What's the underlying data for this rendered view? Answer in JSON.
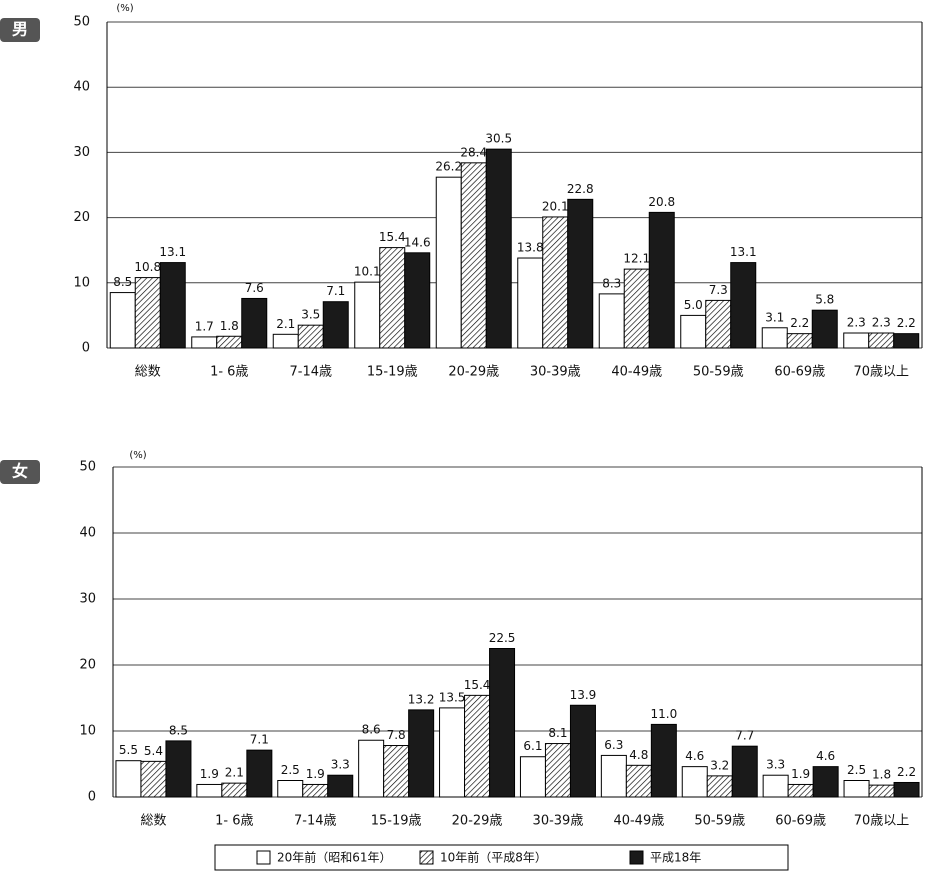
{
  "chart_data": [
    {
      "type": "bar",
      "label": "男",
      "unit": "(%)",
      "categories": [
        "総数",
        "1- 6歳",
        "7-14歳",
        "15-19歳",
        "20-29歳",
        "30-39歳",
        "40-49歳",
        "50-59歳",
        "60-69歳",
        "70歳以上"
      ],
      "series": [
        {
          "color": "#ffffff",
          "values": [
            8.5,
            1.7,
            2.1,
            10.1,
            26.2,
            13.8,
            8.3,
            5.0,
            3.1,
            2.3
          ],
          "value_labels": [
            "8.5",
            "1.7",
            "2.1",
            "10.1",
            "26.2",
            "13.8",
            "8.3",
            "5.0",
            "3.1",
            "2.3"
          ]
        },
        {
          "color": "#000000",
          "hatch": true,
          "values": [
            10.8,
            1.8,
            3.5,
            15.4,
            28.4,
            20.1,
            12.1,
            7.3,
            2.2,
            2.3
          ],
          "value_labels": [
            "10.8",
            "1.8",
            "3.5",
            "15.4",
            "28.4",
            "20.1",
            "12.1",
            "7.3",
            "2.2",
            "2.3"
          ]
        },
        {
          "color": "#1a1a1a",
          "values": [
            13.1,
            7.6,
            7.1,
            14.6,
            30.5,
            22.8,
            20.8,
            13.1,
            5.8,
            2.2
          ],
          "value_labels": [
            "13.1",
            "7.6",
            "7.1",
            "14.6",
            "30.5",
            "22.8",
            "20.8",
            "13.1",
            "5.8",
            "2.2"
          ]
        }
      ],
      "ylim": [
        0,
        50
      ],
      "yticks": [
        0,
        10,
        20,
        30,
        40,
        50
      ],
      "grid": true
    },
    {
      "type": "bar",
      "label": "女",
      "unit": "(%)",
      "categories": [
        "総数",
        "1- 6歳",
        "7-14歳",
        "15-19歳",
        "20-29歳",
        "30-39歳",
        "40-49歳",
        "50-59歳",
        "60-69歳",
        "70歳以上"
      ],
      "series": [
        {
          "name": "20年前（昭和61年）",
          "color": "#ffffff",
          "values": [
            5.5,
            1.9,
            2.5,
            8.6,
            13.5,
            6.1,
            6.3,
            4.6,
            3.3,
            2.5
          ],
          "value_labels": [
            "5.5",
            "1.9",
            "2.5",
            "8.6",
            "13.5",
            "6.1",
            "6.3",
            "4.6",
            "3.3",
            "2.5"
          ]
        },
        {
          "name": "10年前（平成8年）",
          "color": "#000000",
          "hatch": true,
          "values": [
            5.4,
            2.1,
            1.9,
            7.8,
            15.4,
            8.1,
            4.8,
            3.2,
            1.9,
            1.8
          ],
          "value_labels": [
            "5.4",
            "2.1",
            "1.9",
            "7.8",
            "15.4",
            "8.1",
            "4.8",
            "3.2",
            "1.9",
            "1.8"
          ]
        },
        {
          "name": "平成18年",
          "color": "#1a1a1a",
          "values": [
            8.5,
            7.1,
            3.3,
            13.2,
            22.5,
            13.9,
            11.0,
            7.7,
            4.6,
            2.2
          ],
          "value_labels": [
            "8.5",
            "7.1",
            "3.3",
            "13.2",
            "22.5",
            "13.9",
            "11.0",
            "7.7",
            "4.6",
            "2.2"
          ]
        }
      ],
      "ylim": [
        0,
        50
      ],
      "yticks": [
        0,
        10,
        20,
        30,
        40,
        50
      ],
      "grid": true,
      "legend": "bottom"
    }
  ]
}
